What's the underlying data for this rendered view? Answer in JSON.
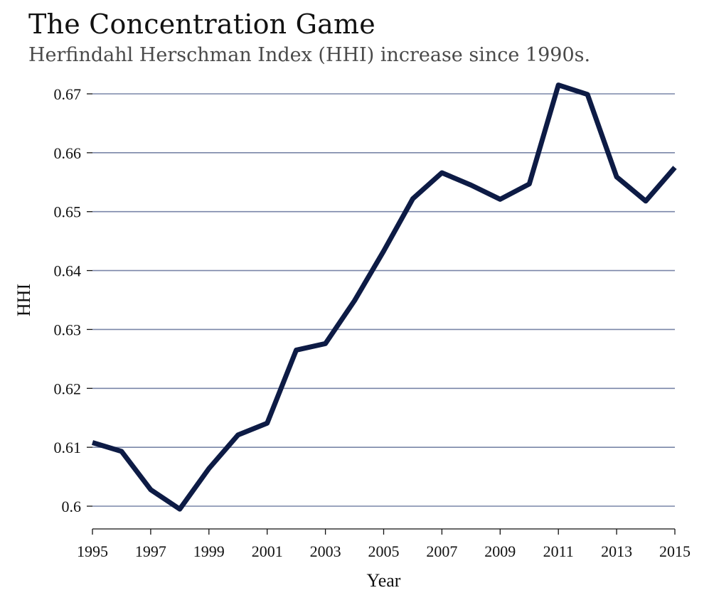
{
  "header": {
    "title": "The Concentration Game",
    "subtitle": "Herfindahl Herschman Index (HHI) increase since 1990s."
  },
  "chart_data": {
    "type": "line",
    "title": "The Concentration Game",
    "subtitle": "Herfindahl Herschman Index (HHI) increase since 1990s.",
    "xlabel": "Year",
    "ylabel": "HHI",
    "xlim": [
      1995,
      2015
    ],
    "ylim": [
      0.596,
      0.672
    ],
    "x_ticks": [
      1995,
      1997,
      1999,
      2001,
      2003,
      2005,
      2007,
      2009,
      2011,
      2013,
      2015
    ],
    "x_tick_labels": [
      "1995",
      "1997",
      "1999",
      "2001",
      "2003",
      "2005",
      "2007",
      "2009",
      "2011",
      "2013",
      "2015"
    ],
    "y_ticks": [
      0.6,
      0.61,
      0.62,
      0.63,
      0.64,
      0.65,
      0.66,
      0.67
    ],
    "y_tick_labels": [
      "0.6",
      "0.61",
      "0.62",
      "0.63",
      "0.64",
      "0.65",
      "0.66",
      "0.67"
    ],
    "grid": "horizontal",
    "colors": {
      "line": "#0d1b45",
      "grid": "#7a86a8",
      "axis": "#111111"
    },
    "series": [
      {
        "x": [
          1995,
          1996,
          1997,
          1998,
          1999,
          2000,
          2001,
          2002,
          2003,
          2004,
          2005,
          2006,
          2007,
          2008,
          2009,
          2010,
          2011,
          2012,
          2013,
          2014,
          2015
        ],
        "values": [
          0.6108,
          0.6093,
          0.6028,
          0.5995,
          0.6064,
          0.6121,
          0.6141,
          0.6265,
          0.6276,
          0.6349,
          0.6433,
          0.6522,
          0.6566,
          0.6545,
          0.6521,
          0.6547,
          0.6715,
          0.6699,
          0.6559,
          0.6518,
          0.6575
        ]
      }
    ]
  }
}
